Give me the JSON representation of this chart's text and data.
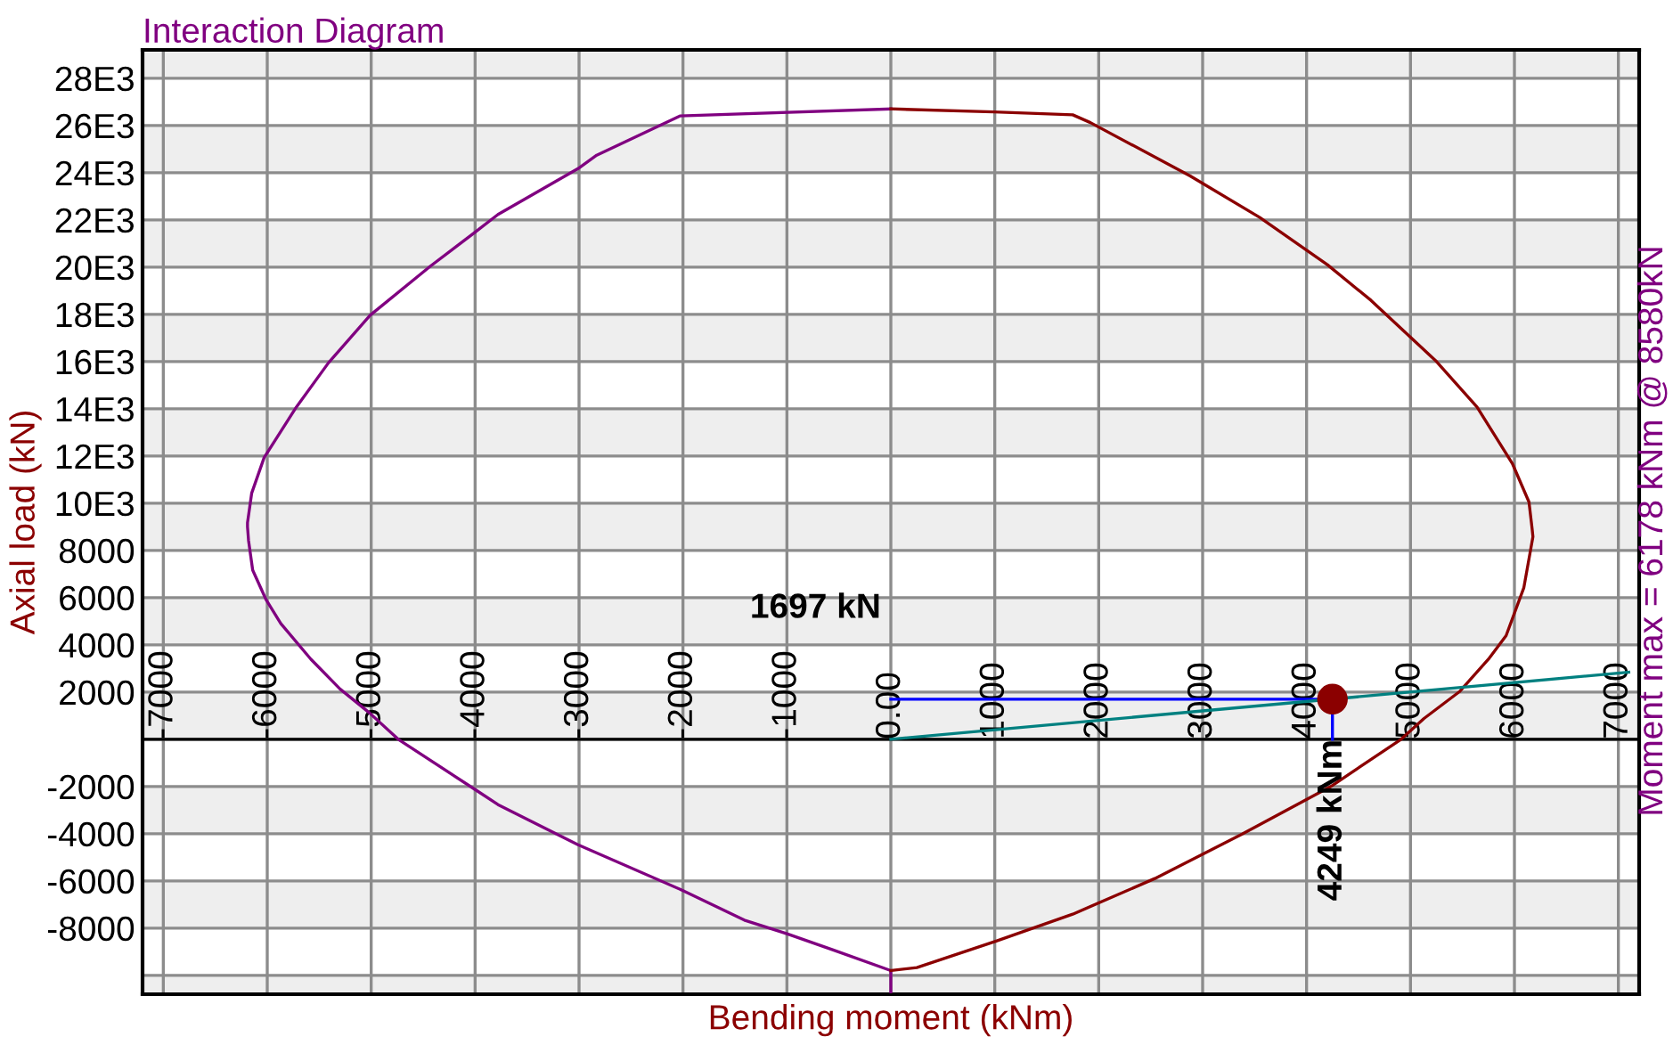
{
  "chart_data": {
    "type": "line",
    "title": "Interaction Diagram",
    "xlabel": "Bending moment (kNm)",
    "ylabel": "Axial load (kN)",
    "xlim": [
      -7200,
      7200
    ],
    "ylim": [
      -10800,
      29200
    ],
    "xticks": [
      {
        "value": -7000,
        "label": "-7000"
      },
      {
        "value": -6000,
        "label": "-6000"
      },
      {
        "value": -5000,
        "label": "-5000"
      },
      {
        "value": -4000,
        "label": "-4000"
      },
      {
        "value": -3000,
        "label": "-3000"
      },
      {
        "value": -2000,
        "label": "-2000"
      },
      {
        "value": -1000,
        "label": "-1000"
      },
      {
        "value": 0,
        "label": "0.00"
      },
      1000,
      2000,
      3000,
      4000,
      5000,
      6000,
      7000
    ],
    "yticks": [
      {
        "value": -10000,
        "label": null
      },
      -8000,
      -6000,
      -4000,
      -2000,
      {
        "value": 0,
        "label": null
      },
      2000,
      4000,
      6000,
      8000,
      {
        "value": 10000,
        "label": "10E3"
      },
      {
        "value": 12000,
        "label": "12E3"
      },
      {
        "value": 14000,
        "label": "14E3"
      },
      {
        "value": 16000,
        "label": "16E3"
      },
      {
        "value": 18000,
        "label": "18E3"
      },
      {
        "value": 20000,
        "label": "20E3"
      },
      {
        "value": 22000,
        "label": "22E3"
      },
      {
        "value": 24000,
        "label": "24E3"
      },
      {
        "value": 26000,
        "label": "26E3"
      },
      {
        "value": 28000,
        "label": "28E3"
      }
    ],
    "grid": true,
    "series": [
      {
        "color": "#800080",
        "x": [
          0,
          -2030,
          -2830,
          -3010,
          -3780,
          -4000,
          -4430,
          -5010,
          -5410,
          -5720,
          -6030,
          -6150,
          -6190,
          -6190,
          -6180,
          -6140,
          -6010,
          -5870,
          -5580,
          -5300,
          -5020,
          -4740,
          -4000,
          -3780,
          -3010,
          -2000,
          -1410,
          -1000,
          -560,
          0,
          0
        ],
        "values": [
          26700,
          26400,
          24740,
          24170,
          22230,
          21480,
          20040,
          17960,
          15950,
          14070,
          11930,
          10420,
          9170,
          9000,
          8420,
          7160,
          5900,
          4900,
          3390,
          2130,
          1130,
          0,
          -2130,
          -2770,
          -4470,
          -6410,
          -7660,
          -8240,
          -8920,
          -9800,
          -10700
        ]
      },
      {
        "color": "#8b0000",
        "x": [
          0,
          990,
          1750,
          1920,
          2880,
          3550,
          4200,
          4620,
          5250,
          5640,
          5980,
          6140,
          6170,
          6178,
          6090,
          5920,
          5750,
          5470,
          5130,
          4910,
          4230,
          3380,
          2540,
          1750,
          1020,
          250,
          0
        ],
        "values": [
          26700,
          26570,
          26450,
          26120,
          23860,
          22100,
          20100,
          18590,
          16000,
          14070,
          11680,
          10050,
          8920,
          8580,
          6410,
          4390,
          3390,
          2010,
          880,
          0,
          -2010,
          -4020,
          -5900,
          -7410,
          -8540,
          -9670,
          -9800
        ]
      },
      {
        "color": "#0000ff",
        "x": [
          0,
          4249,
          4249
        ],
        "values": [
          1697,
          1697,
          0
        ]
      },
      {
        "color": "#008080",
        "x": [
          0,
          7100
        ],
        "values": [
          0,
          2840
        ]
      },
      {
        "type": "scatter",
        "color": "#8b0000",
        "marker": "circle",
        "x": [
          4249
        ],
        "values": [
          1697
        ]
      }
    ],
    "annotations": [
      {
        "text": "1697 kN",
        "x": 0,
        "y": 1697
      },
      {
        "text": "4249 kNm",
        "x": 4249,
        "y": 0
      },
      "Moment max = 6178 kNm @ 8580kN"
    ]
  }
}
